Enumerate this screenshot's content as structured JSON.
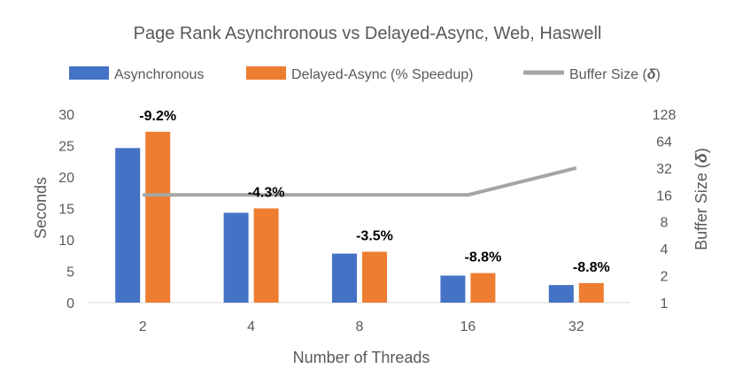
{
  "chart_data": {
    "type": "bar",
    "title": "Page Rank Asynchronous vs Delayed-Async, Web, Haswell",
    "xlabel": "Number of Threads",
    "ylabel": "Seconds",
    "y2label_prefix": "Buffer Size (",
    "y2label_symbol": "δ",
    "y2label_suffix": ")",
    "categories": [
      "2",
      "4",
      "8",
      "16",
      "32"
    ],
    "ylim": [
      0,
      30
    ],
    "yticks": [
      "0",
      "5",
      "10",
      "15",
      "20",
      "25",
      "30"
    ],
    "y2ticks": [
      "1",
      "2",
      "4",
      "8",
      "16",
      "32",
      "64",
      "128"
    ],
    "y2scale": "log2",
    "y2lim": [
      1,
      128
    ],
    "grid": false,
    "legend_position": "top",
    "series": [
      {
        "name": "Asynchronous",
        "type": "bar",
        "axis": "left",
        "color": "#4472C4",
        "values": [
          24.6,
          14.3,
          7.8,
          4.3,
          2.8
        ]
      },
      {
        "name": "Delayed-Async (% Speedup)",
        "type": "bar",
        "axis": "left",
        "color": "#ED7D31",
        "values": [
          27.2,
          15.0,
          8.1,
          4.7,
          3.1
        ],
        "labels": [
          "-9.2%",
          "-4.3%",
          "-3.5%",
          "-8.8%",
          "-8.8%"
        ]
      },
      {
        "name_prefix": "Buffer Size (",
        "name_symbol": "δ",
        "name_suffix": ")",
        "type": "line",
        "axis": "right",
        "color": "#A5A5A5",
        "values": [
          16,
          16,
          16,
          16,
          32
        ]
      }
    ]
  }
}
